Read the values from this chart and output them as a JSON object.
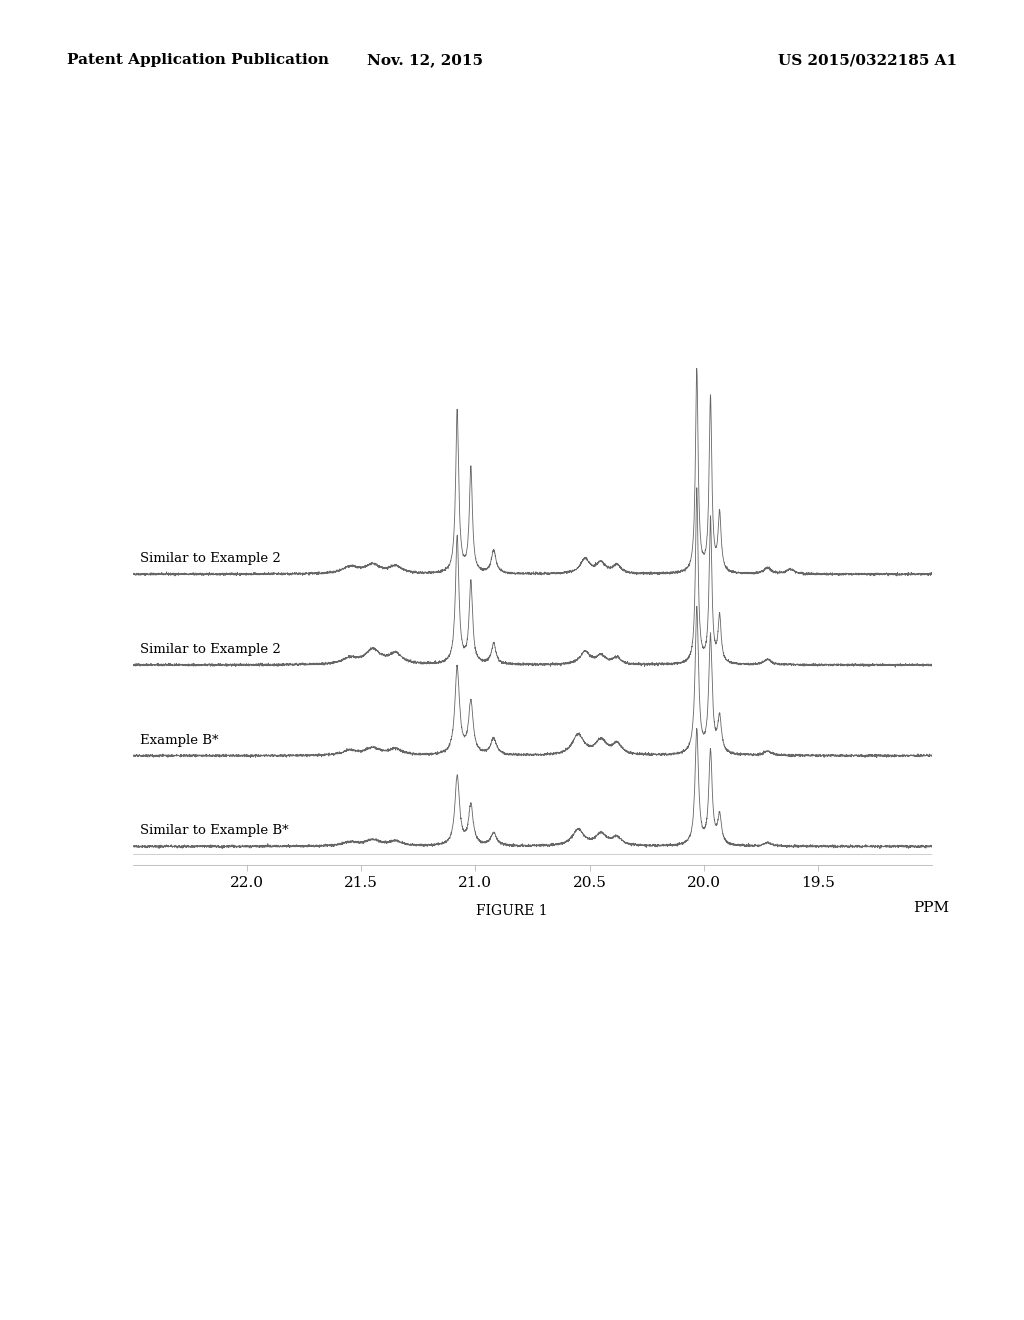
{
  "header_left": "Patent Application Publication",
  "header_center": "Nov. 12, 2015",
  "header_right": "US 2015/0322185 A1",
  "figure_label": "FIGURE 1",
  "x_min": 22.5,
  "x_max": 19.0,
  "x_ticks": [
    22.0,
    21.5,
    21.0,
    20.5,
    20.0,
    19.5
  ],
  "x_tick_labels": [
    "22.0",
    "21.5",
    "21.0",
    "20.5",
    "20.0",
    "19.5"
  ],
  "x_label": "PPM",
  "trace_labels": [
    "Similar to Example 2",
    "Similar to Example 2",
    "Example B*",
    "Similar to Example B*"
  ],
  "trace_offsets": [
    1.5,
    1.0,
    0.5,
    0.0
  ],
  "background_color": "#ffffff",
  "line_color": "#555555",
  "header_font_size": 11,
  "label_font_size": 9.5,
  "tick_font_size": 11,
  "figure_label_font_size": 10
}
